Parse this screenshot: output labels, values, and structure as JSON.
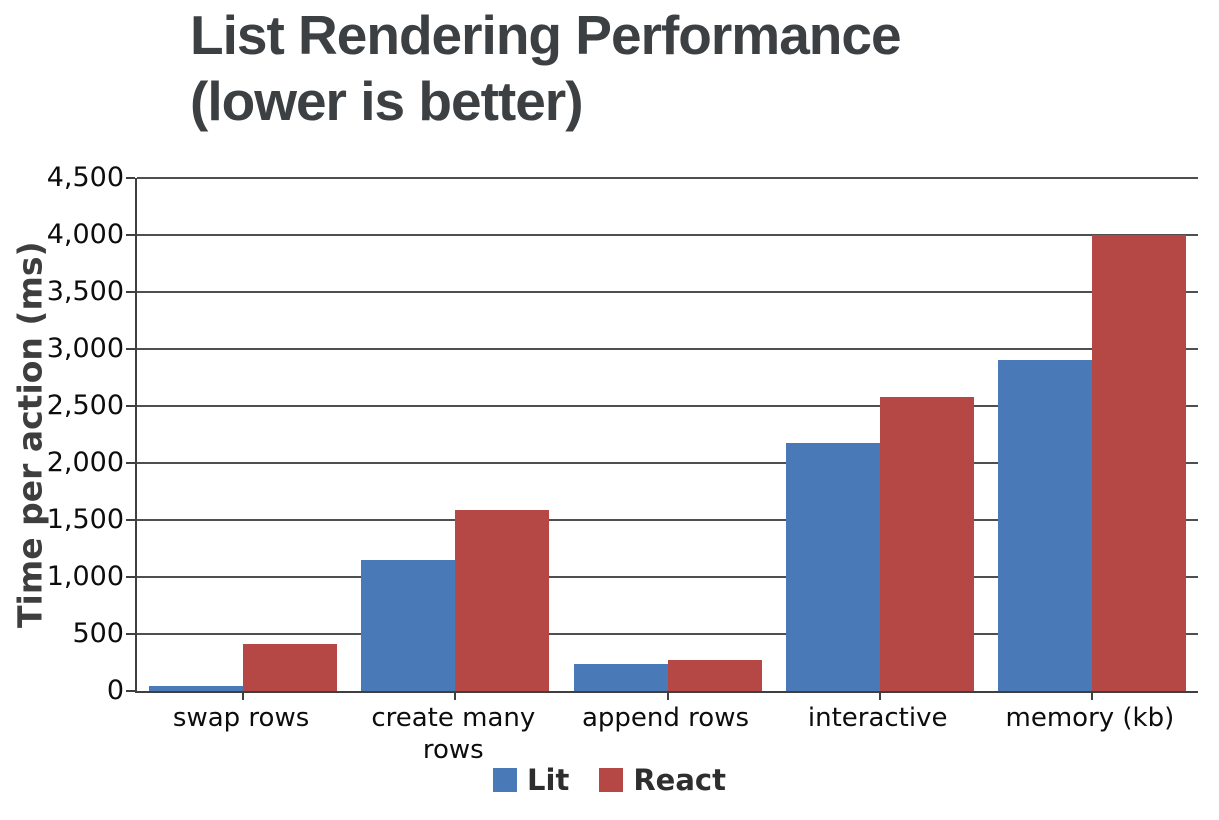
{
  "title": {
    "line1": "List Rendering Performance",
    "line2": "(lower is better)"
  },
  "chart_data": {
    "type": "bar",
    "title": "List Rendering Performance (lower is better)",
    "categories": [
      "swap rows",
      "create many rows",
      "append rows",
      "interactive",
      "memory (kb)"
    ],
    "series": [
      {
        "name": "Lit",
        "color": "#4a79b8",
        "values": [
          45,
          1150,
          240,
          2175,
          2900
        ]
      },
      {
        "name": "React",
        "color": "#b54845",
        "values": [
          410,
          1590,
          270,
          2575,
          4000
        ]
      }
    ],
    "xlabel": "",
    "ylabel": "Time per action (ms)",
    "ylim": [
      0,
      4500
    ],
    "ytick_step": 500,
    "ytick_labels": [
      "0",
      "500",
      "1,000",
      "1,500",
      "2,000",
      "2,500",
      "3,000",
      "3,500",
      "4,000",
      "4,500"
    ],
    "grid": true,
    "legend_position": "bottom"
  },
  "colors": {
    "title_text": "#3c4043",
    "axis_line": "#3f3f3f",
    "gridline": "#4f4f4f",
    "tick_text": "#0d0d0d",
    "legend_text": "#2e2e2e",
    "background": "#ffffff"
  }
}
